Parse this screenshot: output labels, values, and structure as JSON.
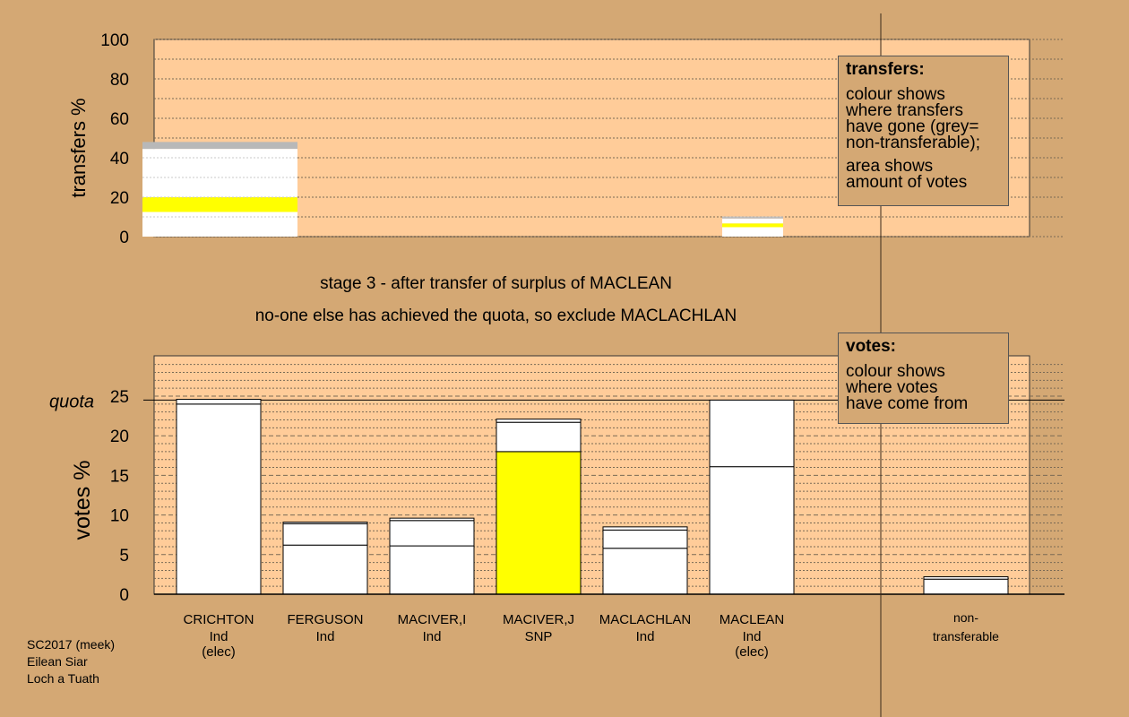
{
  "stage_lines": [
    "stage 3 - after transfer of surplus of MACLEAN",
    "no-one else has achieved the quota, so exclude MACLACHLAN"
  ],
  "transfers_legend": {
    "title": "transfers:",
    "lines_a": [
      "colour shows",
      "where transfers",
      "have gone (grey=",
      "non-transferable);"
    ],
    "lines_b": [
      "area shows",
      "amount of votes"
    ]
  },
  "votes_legend": {
    "title": "votes:",
    "lines": [
      "colour shows",
      "where votes",
      "have come from"
    ]
  },
  "footer": [
    "SC2017 (meek)",
    "Eilean Siar",
    "Loch a Tuath"
  ],
  "colors": {
    "background": "#d4a874",
    "plot_area": "#ffcc99",
    "snp_yellow": "#ffff00",
    "non_transferable_grey": "#b8b8b8",
    "bar_white": "#ffffff"
  },
  "chart_data": [
    {
      "type": "bar",
      "ylabel": "transfers %",
      "ylim": [
        0,
        100
      ],
      "yticks": [
        0,
        20,
        40,
        60,
        80,
        100
      ],
      "grid": true,
      "bars": [
        {
          "category": "CRICHTON",
          "segments": [
            {
              "value": 12.5,
              "color": "#ffffff"
            },
            {
              "value": 7.5,
              "color": "#ffff00"
            },
            {
              "value": 24.5,
              "color": "#ffffff"
            },
            {
              "value": 3.5,
              "color": "#b8b8b8"
            }
          ]
        },
        {
          "category": "MACLEAN",
          "segments": [
            {
              "value": 4.8,
              "color": "#ffffff"
            },
            {
              "value": 1.9,
              "color": "#ffff00"
            },
            {
              "value": 2.5,
              "color": "#ffffff"
            },
            {
              "value": 1.0,
              "color": "#b8b8b8"
            }
          ]
        }
      ]
    },
    {
      "type": "bar",
      "ylabel": "votes %",
      "ylim": [
        0,
        25
      ],
      "yticks": [
        0,
        5,
        10,
        15,
        20,
        25
      ],
      "quota": 24.5,
      "quota_label": "quota",
      "grid": true,
      "categories": [
        {
          "name": "CRICHTON",
          "party": "Ind",
          "status": "(elec)"
        },
        {
          "name": "FERGUSON",
          "party": "Ind",
          "status": ""
        },
        {
          "name": "MACIVER,I",
          "party": "Ind",
          "status": ""
        },
        {
          "name": "MACIVER,J",
          "party": "SNP",
          "status": ""
        },
        {
          "name": "MACLACHLAN",
          "party": "Ind",
          "status": ""
        },
        {
          "name": "MACLEAN",
          "party": "Ind",
          "status": "(elec)"
        }
      ],
      "non_transferable_label": [
        "non-",
        "transferable"
      ],
      "bars": [
        {
          "category": "CRICHTON",
          "segments": [
            {
              "value": 24.0,
              "color": "#ffffff"
            },
            {
              "value": 0.6,
              "color": "#ffffff"
            }
          ]
        },
        {
          "category": "FERGUSON",
          "segments": [
            {
              "value": 6.2,
              "color": "#ffffff"
            },
            {
              "value": 2.7,
              "color": "#ffffff"
            },
            {
              "value": 0.2,
              "color": "#ffffff"
            }
          ]
        },
        {
          "category": "MACIVER,I",
          "segments": [
            {
              "value": 6.1,
              "color": "#ffffff"
            },
            {
              "value": 3.2,
              "color": "#ffffff"
            },
            {
              "value": 0.3,
              "color": "#ffffff"
            }
          ]
        },
        {
          "category": "MACIVER,J",
          "segments": [
            {
              "value": 18.0,
              "color": "#ffff00"
            },
            {
              "value": 3.7,
              "color": "#ffffff"
            },
            {
              "value": 0.4,
              "color": "#ffffff"
            }
          ]
        },
        {
          "category": "MACLACHLAN",
          "segments": [
            {
              "value": 5.8,
              "color": "#ffffff"
            },
            {
              "value": 2.3,
              "color": "#ffffff"
            },
            {
              "value": 0.4,
              "color": "#ffffff"
            }
          ]
        },
        {
          "category": "MACLEAN",
          "segments": [
            {
              "value": 16.1,
              "color": "#ffffff"
            },
            {
              "value": 8.4,
              "color": "#ffffff"
            }
          ]
        },
        {
          "category": "non-transferable",
          "segments": [
            {
              "value": 1.9,
              "color": "#ffffff"
            },
            {
              "value": 0.3,
              "color": "#ffffff"
            }
          ]
        }
      ]
    }
  ]
}
